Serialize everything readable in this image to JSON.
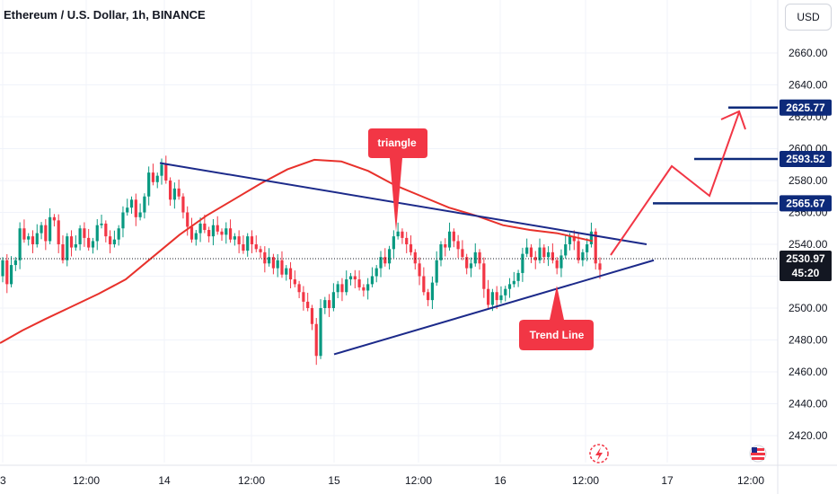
{
  "header": {
    "title": "Ethereum / U.S. Dollar, 1h, BINANCE",
    "currency_label": "USD"
  },
  "colors": {
    "bull": "#089981",
    "bear": "#f23645",
    "ma_line": "#e8312b",
    "trend_line": "#1c2a8a",
    "level_tag": "#0d2a7a",
    "callout": "#f23645",
    "price_tag": "#131722",
    "projection_arrow": "#f23645"
  },
  "annotations": {
    "triangle_label": "triangle",
    "trend_line_label": "Trend Line"
  },
  "price_scale": {
    "current_price": "2530.97",
    "countdown": "45:20",
    "level_labels": [
      "2625.77",
      "2593.52",
      "2565.67"
    ]
  },
  "icons": {
    "flash": "lightning-circle-icon",
    "flag": "us-flag-icon"
  },
  "chart_data": {
    "type": "candlestick",
    "title": "Ethereum / U.S. Dollar, 1h, BINANCE",
    "y_axis": {
      "ylim": [
        2413,
        2685
      ],
      "tick_labels": [
        "2420.00",
        "2440.00",
        "2460.00",
        "2480.00",
        "2500.00",
        "2520.00",
        "2540.00",
        "2560.00",
        "2580.00",
        "2600.00",
        "2620.00",
        "2640.00",
        "2660.00"
      ],
      "position": "right"
    },
    "x_axis": {
      "tick_labels": [
        "3",
        "12:00",
        "14",
        "12:00",
        "15",
        "12:00",
        "16",
        "12:00",
        "17",
        "12:00"
      ]
    },
    "grid": true,
    "candle_closes": [
      2530,
      2515,
      2527,
      2530,
      2550,
      2543,
      2545,
      2540,
      2547,
      2552,
      2542,
      2557,
      2555,
      2540,
      2530,
      2545,
      2538,
      2540,
      2550,
      2544,
      2538,
      2542,
      2552,
      2553,
      2545,
      2540,
      2543,
      2550,
      2560,
      2563,
      2568,
      2557,
      2560,
      2570,
      2585,
      2579,
      2583,
      2590,
      2580,
      2568,
      2575,
      2570,
      2560,
      2551,
      2543,
      2547,
      2553,
      2549,
      2545,
      2552,
      2548,
      2546,
      2550,
      2543,
      2545,
      2540,
      2536,
      2545,
      2540,
      2537,
      2535,
      2528,
      2532,
      2525,
      2530,
      2521,
      2525,
      2518,
      2515,
      2510,
      2504,
      2500,
      2490,
      2470,
      2500,
      2505,
      2500,
      2510,
      2515,
      2510,
      2518,
      2520,
      2518,
      2513,
      2511,
      2515,
      2520,
      2525,
      2532,
      2528,
      2537,
      2545,
      2548,
      2544,
      2540,
      2535,
      2528,
      2520,
      2510,
      2505,
      2516,
      2530,
      2540,
      2538,
      2548,
      2542,
      2537,
      2532,
      2525,
      2528,
      2535,
      2528,
      2512,
      2502,
      2510,
      2505,
      2508,
      2512,
      2515,
      2517,
      2522,
      2534,
      2538,
      2532,
      2530,
      2538,
      2532,
      2535,
      2530,
      2525,
      2533,
      2540,
      2545,
      2542,
      2530,
      2535,
      2540,
      2548,
      2528,
      2524
    ],
    "moving_average": {
      "points": [
        [
          0,
          2478
        ],
        [
          25,
          2486
        ],
        [
          50,
          2493
        ],
        [
          80,
          2501
        ],
        [
          110,
          2509
        ],
        [
          140,
          2518
        ],
        [
          170,
          2532
        ],
        [
          200,
          2546
        ],
        [
          230,
          2558
        ],
        [
          260,
          2568
        ],
        [
          290,
          2578
        ],
        [
          320,
          2587
        ],
        [
          350,
          2593
        ],
        [
          380,
          2592
        ],
        [
          410,
          2586
        ],
        [
          440,
          2577
        ],
        [
          470,
          2570
        ],
        [
          500,
          2563
        ],
        [
          530,
          2558
        ],
        [
          560,
          2552
        ],
        [
          590,
          2549
        ],
        [
          620,
          2547
        ],
        [
          660,
          2542
        ]
      ]
    },
    "trend_lines": [
      {
        "name": "upper",
        "from": [
          178,
          2591
        ],
        "to": [
          720,
          2540
        ]
      },
      {
        "name": "lower",
        "from": [
          372,
          2471
        ],
        "to": [
          728,
          2530
        ]
      }
    ],
    "levels": [
      2625.77,
      2593.52,
      2565.67,
      2530.97
    ]
  }
}
